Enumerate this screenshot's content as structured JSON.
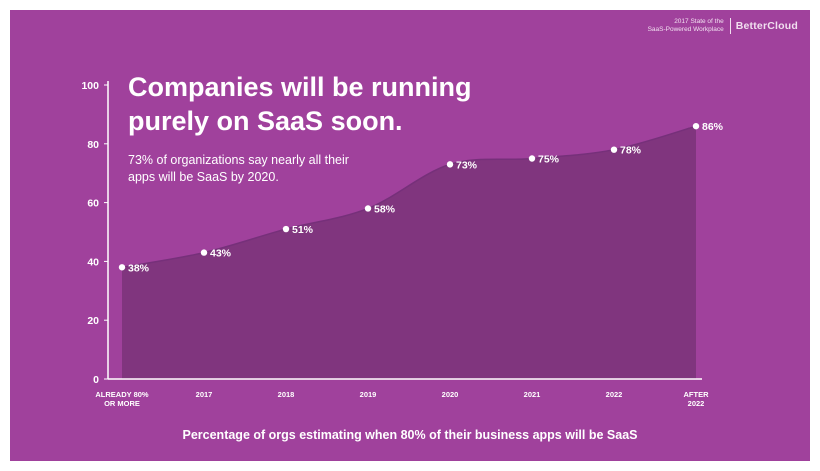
{
  "header": {
    "brand_subtitle_line1": "2017 State of the",
    "brand_subtitle_line2": "SaaS-Powered Workplace",
    "brand_name": "BetterCloud"
  },
  "headline": {
    "line1": "Companies will be running",
    "line2": "purely on SaaS soon.",
    "sub_line1": "73% of organizations say nearly all their",
    "sub_line2": "apps will be SaaS by 2020."
  },
  "colors": {
    "background": "#a0419c",
    "area_fill": "#80357e",
    "text": "#ffffff"
  },
  "chart_data": {
    "type": "area",
    "categories": [
      [
        "ALREADY 80%",
        "OR MORE"
      ],
      [
        "2017"
      ],
      [
        "2018"
      ],
      [
        "2019"
      ],
      [
        "2020"
      ],
      [
        "2021"
      ],
      [
        "2022"
      ],
      [
        "AFTER",
        "2022"
      ]
    ],
    "values": [
      38,
      43,
      51,
      58,
      73,
      75,
      78,
      86
    ],
    "data_labels": [
      "38%",
      "43%",
      "51%",
      "58%",
      "73%",
      "75%",
      "78%",
      "86%"
    ],
    "y_ticks": [
      "0",
      "20",
      "40",
      "60",
      "80",
      "100"
    ],
    "ylim": [
      0,
      100
    ],
    "xlabel": "Percentage of orgs estimating when 80% of their business apps will be SaaS",
    "grid": false
  }
}
